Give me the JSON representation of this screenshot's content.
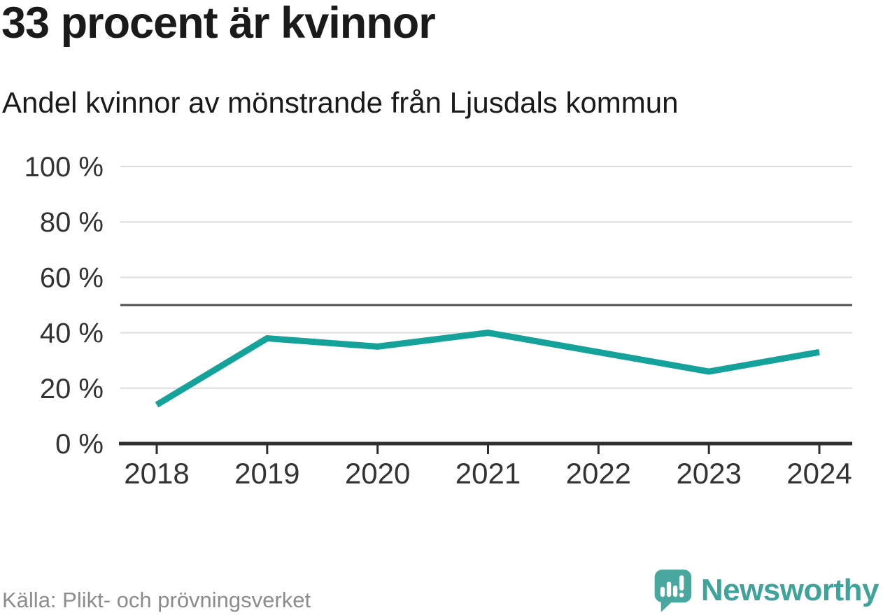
{
  "header": {
    "title": "33 procent är kvinnor",
    "subtitle": "Andel kvinnor av mönstrande från Ljusdals kommun"
  },
  "chart_data": {
    "type": "line",
    "title": "33 procent är kvinnor",
    "subtitle": "Andel kvinnor av mönstrande från Ljusdals kommun",
    "x": [
      2018,
      2019,
      2020,
      2021,
      2022,
      2023,
      2024
    ],
    "series": [
      {
        "name": "Andel kvinnor av mönstrande",
        "values": [
          14,
          38,
          35,
          40,
          33,
          26,
          33
        ]
      }
    ],
    "unit": "%",
    "ylim": [
      0,
      100
    ],
    "yticks": [
      0,
      20,
      40,
      60,
      80,
      100
    ],
    "ytick_suffix": " %",
    "reference_line": 50,
    "grid": "horizontal",
    "legend": "none",
    "colors": {
      "line": "#15a29a",
      "axis": "#2e2e2e",
      "grid": "#dcdcdc",
      "reference": "#4f4f4f",
      "tick_label": "#333333"
    }
  },
  "footer": {
    "source": "Källa: Plikt- och prövningsverket",
    "brand": "Newsworthy",
    "brand_color": "#3ea49b",
    "logo_color": "#48a79f"
  }
}
